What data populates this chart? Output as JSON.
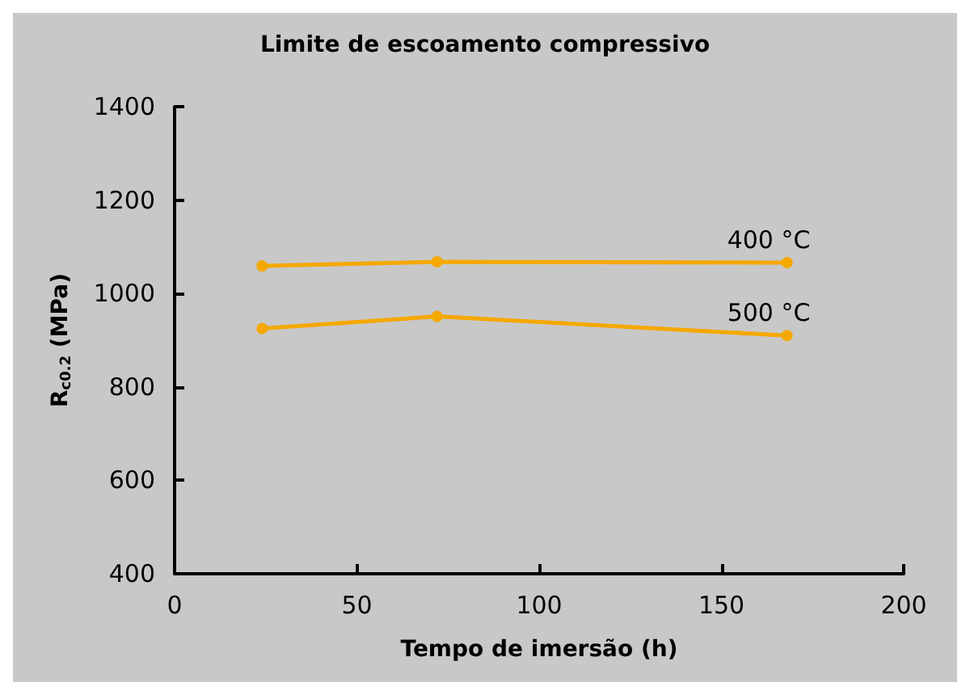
{
  "chart_data": {
    "type": "line",
    "title": "Limite de escoamento compressivo",
    "xlabel": "Tempo de imersão (h)",
    "ylabel": "R$_{c0.2}$ (MPa)",
    "x": [
      24,
      72,
      168
    ],
    "series": [
      {
        "name": "400 °C",
        "color": "#f5a800",
        "values": [
          1059,
          1068,
          1066
        ]
      },
      {
        "name": "500 °C",
        "color": "#f5a800",
        "values": [
          925,
          951,
          910
        ]
      }
    ],
    "xlim": [
      0,
      200
    ],
    "xticks": [
      0,
      50,
      100,
      150,
      200
    ],
    "ylim": [
      400,
      1400
    ],
    "yticks": [
      400,
      600,
      800,
      1000,
      1200,
      1400
    ],
    "grid": false,
    "legend": false,
    "marker": "circle",
    "line_style": "solid"
  }
}
